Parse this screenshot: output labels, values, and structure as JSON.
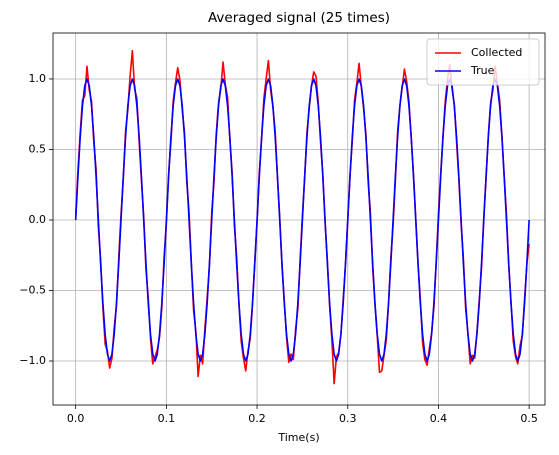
{
  "chart_data": {
    "type": "line",
    "title": "Averaged signal (25 times)",
    "x_label": "Time(s)",
    "x": [
      0,
      0.0025,
      0.005,
      0.0075,
      0.01,
      0.0125,
      0.015,
      0.0175,
      0.02,
      0.0225,
      0.025,
      0.0275,
      0.03,
      0.0325,
      0.035,
      0.0375,
      0.04,
      0.0425,
      0.045,
      0.0475,
      0.05,
      0.0525,
      0.055,
      0.0575,
      0.06,
      0.0625,
      0.065,
      0.0675,
      0.07,
      0.0725,
      0.075,
      0.0775,
      0.08,
      0.0825,
      0.085,
      0.0875,
      0.09,
      0.0925,
      0.095,
      0.0975,
      0.1,
      0.1025,
      0.105,
      0.1075,
      0.11,
      0.1125,
      0.115,
      0.1175,
      0.12,
      0.1225,
      0.125,
      0.1275,
      0.13,
      0.1325,
      0.135,
      0.1375,
      0.14,
      0.1425,
      0.145,
      0.1475,
      0.15,
      0.1525,
      0.155,
      0.1575,
      0.16,
      0.1625,
      0.165,
      0.1675,
      0.17,
      0.1725,
      0.175,
      0.1775,
      0.18,
      0.1825,
      0.185,
      0.1875,
      0.19,
      0.1925,
      0.195,
      0.1975,
      0.2,
      0.2025,
      0.205,
      0.2075,
      0.21,
      0.2125,
      0.215,
      0.2175,
      0.22,
      0.2225,
      0.225,
      0.2275,
      0.23,
      0.2325,
      0.235,
      0.2375,
      0.24,
      0.2425,
      0.245,
      0.2475,
      0.25,
      0.2525,
      0.255,
      0.2575,
      0.26,
      0.2625,
      0.265,
      0.2675,
      0.27,
      0.2725,
      0.275,
      0.2775,
      0.28,
      0.2825,
      0.285,
      0.2875,
      0.29,
      0.2925,
      0.295,
      0.2975,
      0.3,
      0.3025,
      0.305,
      0.3075,
      0.31,
      0.3125,
      0.315,
      0.3175,
      0.32,
      0.3225,
      0.325,
      0.3275,
      0.33,
      0.3325,
      0.335,
      0.3375,
      0.34,
      0.3425,
      0.345,
      0.3475,
      0.35,
      0.3525,
      0.355,
      0.3575,
      0.36,
      0.3625,
      0.365,
      0.3675,
      0.37,
      0.3725,
      0.375,
      0.3775,
      0.38,
      0.3825,
      0.385,
      0.3875,
      0.39,
      0.3925,
      0.395,
      0.3975,
      0.4,
      0.4025,
      0.405,
      0.4075,
      0.41,
      0.4125,
      0.415,
      0.4175,
      0.42,
      0.4225,
      0.425,
      0.4275,
      0.43,
      0.4325,
      0.435,
      0.4375,
      0.44,
      0.4425,
      0.445,
      0.4475,
      0.45,
      0.4525,
      0.455,
      0.4575,
      0.46,
      0.4625,
      0.465,
      0.4675,
      0.47,
      0.4725,
      0.475,
      0.4775,
      0.48,
      0.4825,
      0.485,
      0.4875,
      0.49,
      0.4925,
      0.495,
      0.4975,
      0.5
    ],
    "series": [
      {
        "name": "Collected",
        "color": "#ff0000",
        "values": [
          0.02,
          0.35,
          0.62,
          0.85,
          0.88,
          1.09,
          0.92,
          0.84,
          0.55,
          0.36,
          -0.05,
          -0.28,
          -0.62,
          -0.88,
          -0.93,
          -1.05,
          -0.98,
          -0.76,
          -0.61,
          -0.27,
          0.04,
          0.29,
          0.63,
          0.78,
          1.02,
          1.2,
          0.93,
          0.86,
          0.56,
          0.28,
          0.03,
          -0.35,
          -0.55,
          -0.84,
          -1.02,
          -0.97,
          -0.92,
          -0.83,
          -0.62,
          -0.26,
          -0.03,
          0.33,
          0.55,
          0.84,
          0.97,
          1.08,
          0.99,
          0.78,
          0.62,
          0.27,
          0.06,
          -0.3,
          -0.64,
          -0.79,
          -1.11,
          -0.96,
          -1.02,
          -0.77,
          -0.55,
          -0.33,
          0.05,
          0.27,
          0.61,
          0.83,
          0.93,
          1.12,
          0.96,
          0.87,
          0.57,
          0.34,
          -0.04,
          -0.26,
          -0.59,
          -0.86,
          -0.98,
          -1.07,
          -0.93,
          -0.84,
          -0.6,
          -0.29,
          -0.02,
          0.34,
          0.57,
          0.86,
          1.0,
          1.13,
          0.92,
          0.8,
          0.63,
          0.3,
          0.02,
          -0.33,
          -0.57,
          -0.83,
          -1.01,
          -0.95,
          -0.99,
          -0.78,
          -0.63,
          -0.28,
          0.03,
          0.3,
          0.62,
          0.79,
          0.95,
          1.05,
          1.02,
          0.83,
          0.55,
          0.33,
          -0.02,
          -0.28,
          -0.61,
          -0.85,
          -1.16,
          -0.97,
          -0.94,
          -0.81,
          -0.56,
          -0.32,
          0,
          0.32,
          0.56,
          0.85,
          0.97,
          1.11,
          0.94,
          0.79,
          0.61,
          0.27,
          0.05,
          -0.34,
          -0.6,
          -0.82,
          -1.08,
          -1.07,
          -0.96,
          -0.85,
          -0.59,
          -0.27,
          -0.04,
          0.28,
          0.63,
          0.81,
          0.94,
          1.07,
          0.98,
          0.84,
          0.58,
          0.32,
          0.01,
          -0.31,
          -0.56,
          -0.87,
          -0.99,
          -1.03,
          -0.91,
          -0.8,
          -0.62,
          -0.3,
          0.04,
          0.33,
          0.59,
          0.84,
          1.0,
          1.1,
          0.93,
          0.82,
          0.55,
          0.29,
          -0.03,
          -0.27,
          -0.63,
          -0.8,
          -1.02,
          -0.96,
          -0.98,
          -0.79,
          -0.57,
          -0.34,
          0.02,
          0.29,
          0.6,
          0.83,
          0.92,
          1.09,
          0.97,
          0.85,
          0.6,
          0.31,
          0.04,
          -0.32,
          -0.58,
          -0.86,
          -0.97,
          -1.02,
          -0.89,
          -0.82,
          -0.56,
          -0.31,
          -0.17
        ]
      },
      {
        "name": "True",
        "color": "#0000ff",
        "values": [
          0,
          0.309,
          0.588,
          0.809,
          0.951,
          1,
          0.951,
          0.809,
          0.588,
          0.309,
          0,
          -0.309,
          -0.588,
          -0.809,
          -0.951,
          -1,
          -0.951,
          -0.809,
          -0.588,
          -0.309,
          0,
          0.309,
          0.588,
          0.809,
          0.951,
          1,
          0.951,
          0.809,
          0.588,
          0.309,
          0,
          -0.309,
          -0.588,
          -0.809,
          -0.951,
          -1,
          -0.951,
          -0.809,
          -0.588,
          -0.309,
          0,
          0.309,
          0.588,
          0.809,
          0.951,
          1,
          0.951,
          0.809,
          0.588,
          0.309,
          0,
          -0.309,
          -0.588,
          -0.809,
          -0.951,
          -1,
          -0.951,
          -0.809,
          -0.588,
          -0.309,
          0,
          0.309,
          0.588,
          0.809,
          0.951,
          1,
          0.951,
          0.809,
          0.588,
          0.309,
          0,
          -0.309,
          -0.588,
          -0.809,
          -0.951,
          -1,
          -0.951,
          -0.809,
          -0.588,
          -0.309,
          0,
          0.309,
          0.588,
          0.809,
          0.951,
          1,
          0.951,
          0.809,
          0.588,
          0.309,
          0,
          -0.309,
          -0.588,
          -0.809,
          -0.951,
          -1,
          -0.951,
          -0.809,
          -0.588,
          -0.309,
          0,
          0.309,
          0.588,
          0.809,
          0.951,
          1,
          0.951,
          0.809,
          0.588,
          0.309,
          0,
          -0.309,
          -0.588,
          -0.809,
          -0.951,
          -1,
          -0.951,
          -0.809,
          -0.588,
          -0.309,
          0,
          0.309,
          0.588,
          0.809,
          0.951,
          1,
          0.951,
          0.809,
          0.588,
          0.309,
          0,
          -0.309,
          -0.588,
          -0.809,
          -0.951,
          -1,
          -0.951,
          -0.809,
          -0.588,
          -0.309,
          0,
          0.309,
          0.588,
          0.809,
          0.951,
          1,
          0.951,
          0.809,
          0.588,
          0.309,
          0,
          -0.309,
          -0.588,
          -0.809,
          -0.951,
          -1,
          -0.951,
          -0.809,
          -0.588,
          -0.309,
          0,
          0.309,
          0.588,
          0.809,
          0.951,
          1,
          0.951,
          0.809,
          0.588,
          0.309,
          0,
          -0.309,
          -0.588,
          -0.809,
          -0.951,
          -1,
          -0.951,
          -0.809,
          -0.588,
          -0.309,
          0,
          0.309,
          0.588,
          0.809,
          0.951,
          1,
          0.951,
          0.809,
          0.588,
          0.309,
          0,
          -0.309,
          -0.588,
          -0.809,
          -0.951,
          -1,
          -0.951,
          -0.809,
          -0.588,
          -0.309,
          0
        ]
      }
    ],
    "xlim": [
      -0.025,
      0.5175
    ],
    "ylim": [
      -1.312,
      1.326
    ],
    "xticks": [
      {
        "value": 0,
        "label": "0.0"
      },
      {
        "value": 0.1,
        "label": "0.1"
      },
      {
        "value": 0.2,
        "label": "0.2"
      },
      {
        "value": 0.3,
        "label": "0.3"
      },
      {
        "value": 0.4,
        "label": "0.4"
      },
      {
        "value": 0.5,
        "label": "0.5"
      }
    ],
    "yticks": [
      {
        "value": -1,
        "label": "−1.0"
      },
      {
        "value": -0.5,
        "label": "−0.5"
      },
      {
        "value": 0,
        "label": "0.0"
      },
      {
        "value": 0.5,
        "label": "0.5"
      },
      {
        "value": 1,
        "label": "1.0"
      }
    ],
    "grid": true,
    "legend": "upper right"
  }
}
